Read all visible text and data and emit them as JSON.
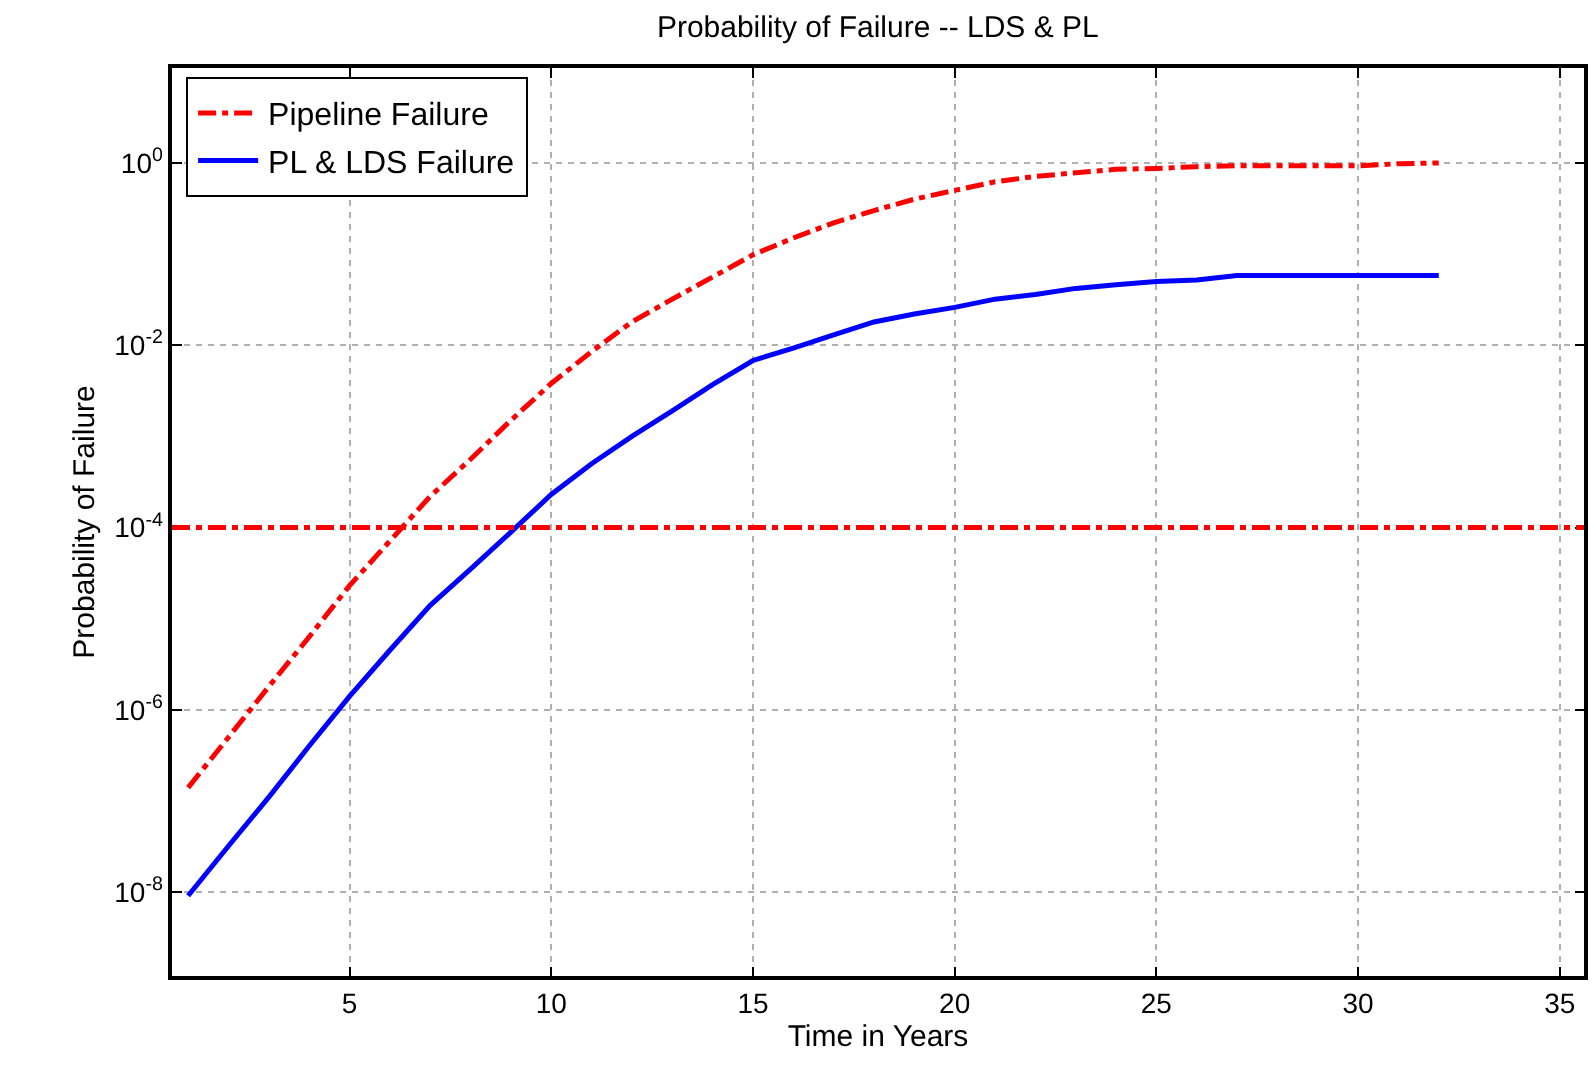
{
  "chart_data": {
    "type": "line",
    "title": "Probability of Failure -- LDS & PL",
    "xlabel": "Time in Years",
    "ylabel": "Probability of Failure",
    "x": [
      1,
      2,
      3,
      4,
      5,
      6,
      7,
      8,
      9,
      10,
      11,
      12,
      13,
      14,
      15,
      16,
      17,
      18,
      19,
      20,
      21,
      22,
      23,
      24,
      25,
      26,
      27,
      28,
      29,
      30,
      31,
      32
    ],
    "series": [
      {
        "name": "Pipeline Failure",
        "color": "#ff0000",
        "line_style": "dashdot",
        "values": [
          1.4e-07,
          5e-07,
          1.8e-06,
          6.3e-06,
          2.3e-05,
          7.1e-05,
          0.00022,
          0.00056,
          0.0015,
          0.0038,
          0.0085,
          0.018,
          0.032,
          0.056,
          0.098,
          0.15,
          0.22,
          0.3,
          0.4,
          0.5,
          0.62,
          0.71,
          0.78,
          0.85,
          0.87,
          0.91,
          0.93,
          0.93,
          0.93,
          0.93,
          0.98,
          1.0
        ]
      },
      {
        "name": "PL & LDS Failure",
        "color": "#0000ff",
        "line_style": "solid",
        "values": [
          9.1e-09,
          3.2e-08,
          1.1e-07,
          4e-07,
          1.4e-06,
          4.5e-06,
          1.4e-05,
          3.5e-05,
          8.9e-05,
          0.00023,
          0.0005,
          0.001,
          0.0019,
          0.0037,
          0.0068,
          0.0093,
          0.013,
          0.018,
          0.022,
          0.026,
          0.032,
          0.036,
          0.042,
          0.046,
          0.05,
          0.052,
          0.058,
          0.058,
          0.058,
          0.058,
          0.058,
          0.058
        ]
      }
    ],
    "ref_lines": [
      {
        "axis": "y",
        "value": 0.0001,
        "color": "#ff0000",
        "line_style": "dashdot"
      }
    ],
    "log": "y",
    "xlim": [
      0.6,
      35.6
    ],
    "xticks": [
      5,
      10,
      15,
      20,
      25,
      30,
      35
    ],
    "ylim": [
      1.2e-09,
      11
    ],
    "yticks": [
      {
        "value": 1e-08,
        "label": "10$^{-8}$"
      },
      {
        "value": 1e-06,
        "label": "10$^{-6}$"
      },
      {
        "value": 0.0001,
        "label": "10$^{-4}$"
      },
      {
        "value": 0.01,
        "label": "10$^{-2}$"
      },
      {
        "value": 1,
        "label": "10$^{0}$"
      }
    ],
    "grid": true,
    "legend": "top left",
    "marker": "none"
  }
}
